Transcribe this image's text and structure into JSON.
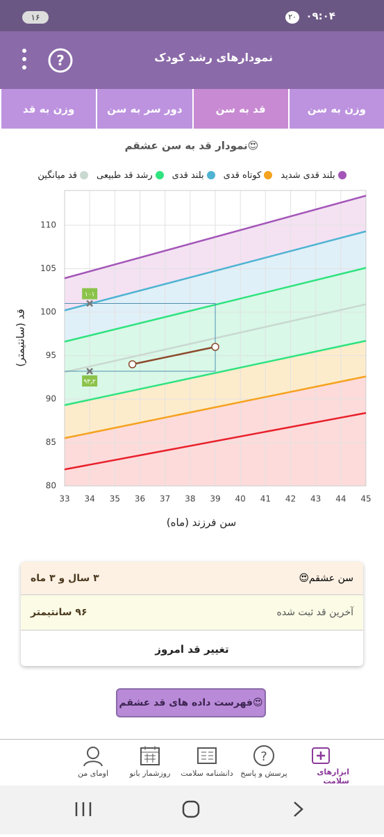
{
  "status": {
    "time": "۰۹:۰۴",
    "badge": "۲۰",
    "battery": "۱۶"
  },
  "header": {
    "title": "نمودارهای رشد کودک"
  },
  "tabs": [
    "وزن به سن",
    "قد به سن",
    "دور سر به سن",
    "وزن به قد"
  ],
  "chart_data": {
    "type": "line",
    "title": "نمودار قد به سن عشقم😍",
    "x_label": "سن فرزند (ماه)",
    "y_label": "قد (سانتیمتر)",
    "x": [
      33,
      45
    ],
    "xlim": [
      33,
      45
    ],
    "xticks": [
      33,
      34,
      35,
      36,
      37,
      38,
      39,
      40,
      41,
      42,
      43,
      44,
      45
    ],
    "ylim": [
      80,
      114
    ],
    "yticks": [
      80,
      85,
      90,
      95,
      100,
      105,
      110
    ],
    "grid": true,
    "series": [
      {
        "name": "بلند قدی شدید",
        "color": "#a456b8",
        "fill": "#f4e2f3",
        "values": [
          103.9,
          113.4
        ]
      },
      {
        "name": "کوتاه قدی",
        "color": "#f5a21e",
        "fill": "#fddbdb",
        "values": [
          85.5,
          92.6
        ]
      },
      {
        "name": "بلند قدی",
        "color": "#4fb3d2",
        "fill": "#e0f0f8",
        "values": [
          100.2,
          109.3
        ]
      },
      {
        "name": "رشد قد طبیعی",
        "color": "#2fe37f",
        "fill": "#d9f8e8",
        "values": [
          96.6,
          105.1
        ]
      },
      {
        "name": "قد میانگین",
        "color": "#c9d9d1",
        "fill": "#d9f8e8",
        "values": [
          93.1,
          100.9
        ]
      },
      {
        "color": "#2fe37f",
        "fill": "#fdeccc",
        "values": [
          89.3,
          96.7
        ]
      },
      {
        "color": "#e8212b",
        "values": [
          81.9,
          88.4
        ]
      }
    ],
    "child": {
      "x": [
        35.7,
        39
      ],
      "values": [
        94,
        96
      ],
      "color": "#8b4a2b"
    },
    "markers": [
      {
        "x": 34,
        "y": 101,
        "label": "۱۰۱"
      },
      {
        "x": 34,
        "y": 93.2,
        "label": "۹۳٫۲"
      }
    ]
  },
  "card": {
    "rows": [
      {
        "label": "سن عشقم😍",
        "value": "۳ سال و ۳ ماه"
      },
      {
        "label": "آخرین قد ثبت شده",
        "value": "۹۶ سانتیمتر"
      }
    ],
    "action": "تغییر قد امروز"
  },
  "list_button": "فهرست داده های قد عشقم😍",
  "nav": [
    "ابزارهای سلامت",
    "پرسش و پاسخ",
    "دانشنامه سلامت",
    "روزشمار بانو",
    "اومای من"
  ]
}
